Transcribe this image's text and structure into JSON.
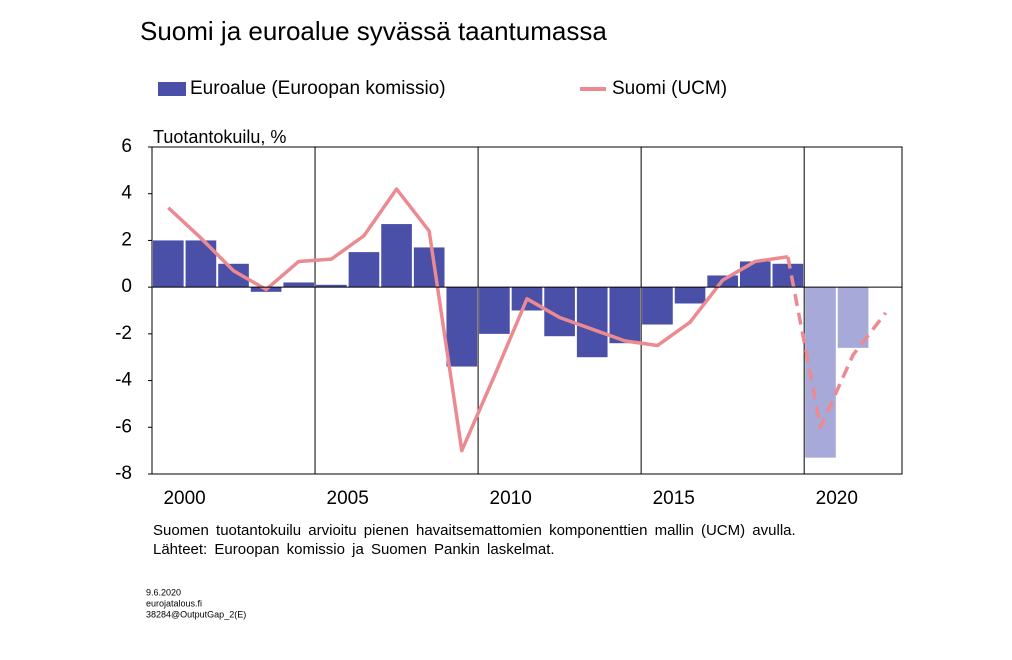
{
  "chart_data": {
    "type": "bar_line",
    "title": "Suomi ja euroalue syvässä taantumassa",
    "y_label": "Tuotantokuilu, %",
    "categories": [
      "2000",
      null,
      null,
      null,
      null,
      "2005",
      null,
      null,
      null,
      null,
      "2010",
      null,
      null,
      null,
      null,
      "2015",
      null,
      null,
      null,
      null,
      "2020",
      null,
      null
    ],
    "series": [
      {
        "name": "Euroalue (Euroopan komissio)",
        "kind": "bar",
        "color": "#4a4fa8",
        "forecast_color": "#a7a9d9",
        "forecast_from_index": 20,
        "values": [
          2.0,
          2.0,
          1.0,
          -0.2,
          0.2,
          0.1,
          1.5,
          2.7,
          1.7,
          -3.4,
          -2.0,
          -1.0,
          -2.1,
          -3.0,
          -2.4,
          -1.6,
          -0.7,
          0.5,
          1.1,
          1.0,
          -7.3,
          -2.6,
          null
        ]
      },
      {
        "name": "Suomi (UCM)",
        "kind": "line",
        "color": "#ec8a91",
        "forecast_from_index": 19,
        "values": [
          3.4,
          2.1,
          0.7,
          -0.1,
          1.1,
          1.2,
          2.2,
          4.2,
          2.4,
          -7.0,
          -3.8,
          -0.5,
          -1.3,
          -1.8,
          -2.3,
          -2.5,
          -1.5,
          0.3,
          1.1,
          1.3,
          -6.0,
          -2.9,
          -1.1
        ]
      }
    ],
    "ylim": [
      -8,
      6
    ],
    "yticks": [
      -8,
      -6,
      -4,
      -2,
      0,
      2,
      4,
      6
    ],
    "notes": [
      "Suomen tuotantokuilu arvioitu pienen havaitsemattomien komponenttien mallin (UCM) avulla.",
      "Lähteet: Euroopan komissio ja Suomen Pankin laskelmat."
    ],
    "meta": [
      "9.6.2020",
      "eurojatalous.fi",
      "38284@OutputGap_2(E)"
    ]
  }
}
